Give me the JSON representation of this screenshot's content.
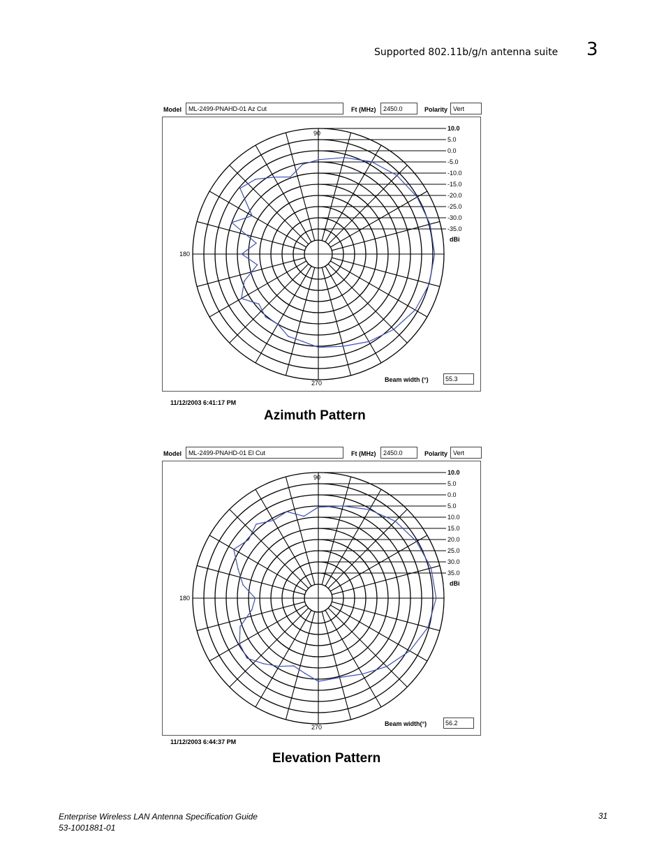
{
  "header": {
    "section_title": "Supported 802.11b/g/n antenna suite",
    "chapter_number": "3"
  },
  "footer": {
    "doc_title": "Enterprise Wireless LAN Antenna Specification Guide",
    "doc_number": "53-1001881-01",
    "page_number": "31"
  },
  "charts": [
    {
      "model_label": "Model",
      "model_value": "ML-2499-PNAHD-01 Az Cut",
      "freq_label": "Ft (MHz)",
      "freq_value": "2450.0",
      "polarity_label": "Polarity",
      "polarity_value": "Vert",
      "angle_top": "90",
      "angle_left": "180",
      "angle_bottom": "270",
      "unit_label": "dBi",
      "beam_label": "Beam width (°)",
      "beam_value": "55.3",
      "timestamp": "11/12/2003   6:41:17 PM",
      "caption": "Azimuth Pattern",
      "line_color": "#3b4fb8"
    },
    {
      "model_label": "Model",
      "model_value": "ML-2499-PNAHD-01 El Cut",
      "freq_label": "Ft (MHz)",
      "freq_value": "2450.0",
      "polarity_label": "Polarity",
      "polarity_value": "Vert",
      "angle_top": "90",
      "angle_left": "180",
      "angle_bottom": "270",
      "unit_label": "dBi",
      "beam_label": "Beam width(°)",
      "beam_value": "56.2",
      "timestamp": "11/12/2003   6:44:37 PM",
      "caption": "Elevation Pattern",
      "line_color": "#3b4fb8"
    }
  ],
  "chart_data": [
    {
      "type": "polar",
      "title": "Azimuth Pattern",
      "radial_ticks": [
        "10.0",
        "5.0",
        "0.0",
        "-5.0",
        "-10.0",
        "-15.0",
        "-20.0",
        "-25.0",
        "-30.0",
        "-35.0"
      ],
      "radial_range": [
        -40,
        10
      ],
      "units": "dBi",
      "angles_deg": [
        0,
        15,
        30,
        45,
        60,
        75,
        90,
        100,
        110,
        120,
        130,
        140,
        150,
        160,
        170,
        180,
        190,
        200,
        210,
        220,
        230,
        240,
        250,
        260,
        270,
        285,
        300,
        315,
        330,
        345
      ],
      "gain_dbi": [
        5.8,
        5.5,
        4.8,
        3.5,
        1.5,
        -1.5,
        -4.0,
        -5.5,
        -9.5,
        -6.5,
        -2.5,
        -0.5,
        -12.0,
        -5.0,
        -18.0,
        -12.0,
        -18.5,
        -11.0,
        -6.5,
        -11.5,
        -9.5,
        -10.0,
        -7.0,
        -6.5,
        -4.5,
        -3.5,
        -1.0,
        1.5,
        3.8,
        5.2
      ]
    },
    {
      "type": "polar",
      "title": "Elevation Pattern",
      "radial_ticks": [
        "10.0",
        "5.0",
        "0.0",
        "5.0",
        "10.0",
        "15.0",
        "20.0",
        "25.0",
        "30.0",
        "35.0"
      ],
      "radial_range": [
        -40,
        10
      ],
      "units": "dBi",
      "angles_deg": [
        0,
        15,
        30,
        45,
        60,
        75,
        90,
        100,
        110,
        120,
        130,
        140,
        150,
        160,
        170,
        180,
        190,
        200,
        210,
        220,
        230,
        240,
        250,
        260,
        270,
        285,
        300,
        315,
        330,
        345
      ],
      "gain_dbi": [
        6.5,
        6.0,
        4.5,
        2.5,
        -0.5,
        -3.5,
        -5.5,
        -9.0,
        -5.0,
        -6.0,
        -3.0,
        -5.5,
        -2.5,
        -8.0,
        -12.0,
        -18.0,
        -16.0,
        -9.0,
        -5.5,
        -4.5,
        -8.0,
        -11.0,
        -14.0,
        -12.0,
        -9.0,
        -9.5,
        -7.0,
        -3.0,
        1.0,
        4.5
      ]
    }
  ]
}
